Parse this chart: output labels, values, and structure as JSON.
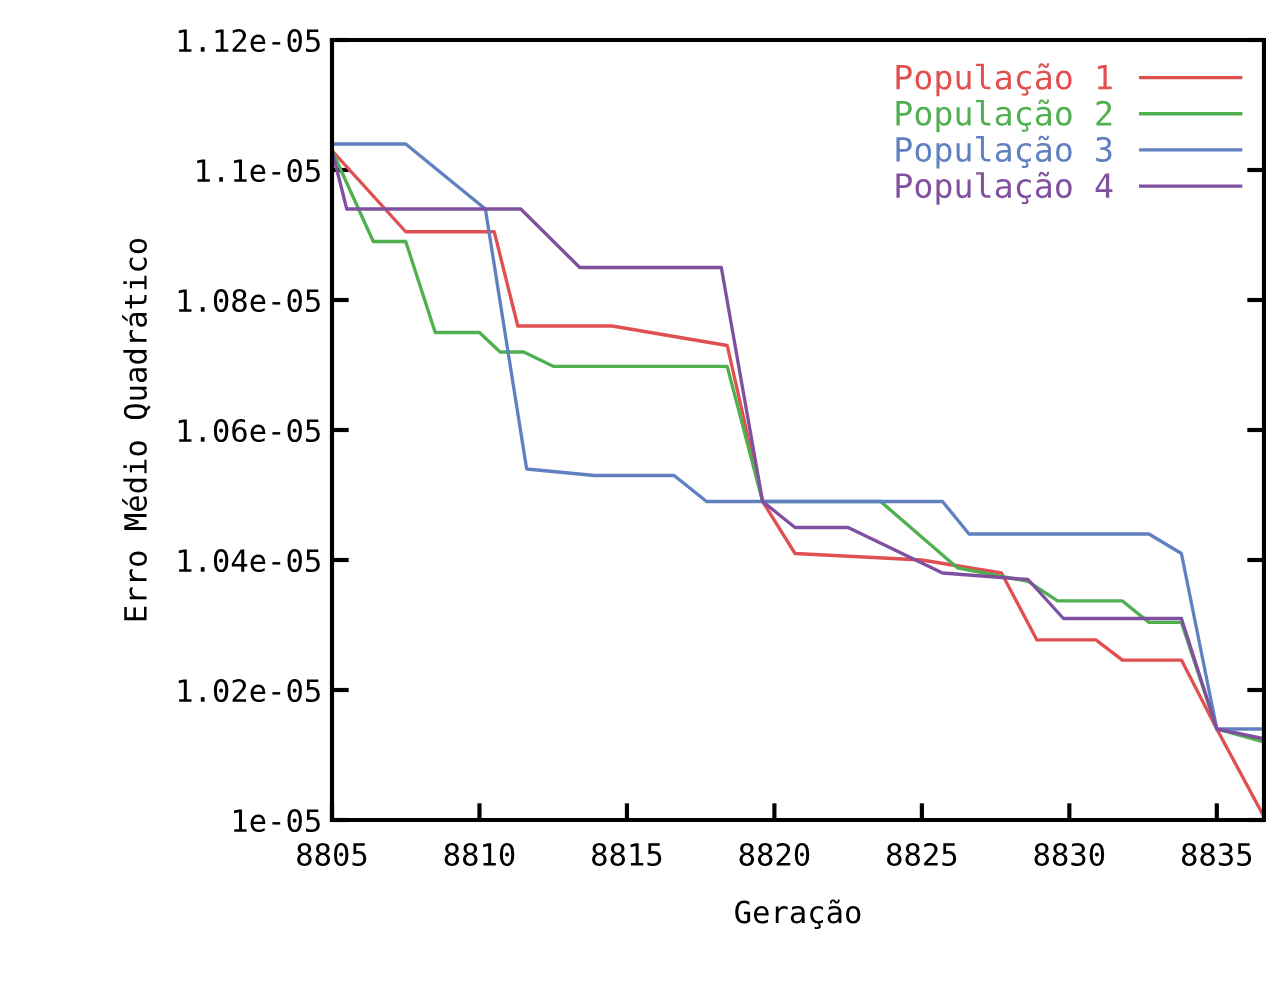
{
  "chart_data": {
    "type": "line",
    "xlabel": "Geração",
    "ylabel": "Erro Médio Quadrático",
    "xlim": [
      8805,
      8836.6
    ],
    "ylim": [
      1e-05,
      1.12e-05
    ],
    "xticks": [
      8805,
      8810,
      8815,
      8820,
      8825,
      8830,
      8835
    ],
    "yticks": [
      {
        "value": 1e-05,
        "label": "1e-05"
      },
      {
        "value": 1.02e-05,
        "label": "1.02e-05"
      },
      {
        "value": 1.04e-05,
        "label": "1.04e-05"
      },
      {
        "value": 1.06e-05,
        "label": "1.06e-05"
      },
      {
        "value": 1.08e-05,
        "label": "1.08e-05"
      },
      {
        "value": 1.1e-05,
        "label": "1.1e-05"
      },
      {
        "value": 1.12e-05,
        "label": "1.12e-05"
      }
    ],
    "grid": false,
    "legend": "top right",
    "marker": "none",
    "line_style": "solid",
    "series": [
      {
        "name": "População 1",
        "color": "#e05050",
        "x": [
          8805,
          8807.5,
          8810.5,
          8811.3,
          8814.5,
          8818.4,
          8819.6,
          8820.7,
          8825,
          8827.7,
          8828.9,
          8830.9,
          8831.8,
          8833.8,
          8835,
          8836.6
        ],
        "values": [
          1.103e-05,
          1.0905e-05,
          1.0905e-05,
          1.076e-05,
          1.076e-05,
          1.073e-05,
          1.049e-05,
          1.041e-05,
          1.04e-05,
          1.038e-05,
          1.0277e-05,
          1.0277e-05,
          1.0246e-05,
          1.0246e-05,
          1.014e-05,
          1.0005e-05
        ]
      },
      {
        "name": "População 2",
        "color": "#50b050",
        "x": [
          8805,
          8806.4,
          8807.5,
          8808.5,
          8810,
          8810.7,
          8811.5,
          8812.5,
          8818.4,
          8819.6,
          8823.6,
          8826.2,
          8828.6,
          8829.6,
          8831.8,
          8832.7,
          8833.8,
          8835,
          8836.6
        ],
        "values": [
          1.103e-05,
          1.089e-05,
          1.089e-05,
          1.075e-05,
          1.075e-05,
          1.072e-05,
          1.072e-05,
          1.0698e-05,
          1.0698e-05,
          1.049e-05,
          1.049e-05,
          1.0388e-05,
          1.0367e-05,
          1.0337e-05,
          1.0337e-05,
          1.0304e-05,
          1.0304e-05,
          1.014e-05,
          1.012e-05
        ]
      },
      {
        "name": "População 3",
        "color": "#6080c0",
        "x": [
          8805,
          8807.5,
          8810.2,
          8811.6,
          8813.9,
          8816.6,
          8817.7,
          8825.7,
          8826.6,
          8832.7,
          8833.8,
          8835,
          8836.6
        ],
        "values": [
          1.104e-05,
          1.104e-05,
          1.094e-05,
          1.054e-05,
          1.053e-05,
          1.053e-05,
          1.049e-05,
          1.049e-05,
          1.044e-05,
          1.044e-05,
          1.041e-05,
          1.014e-05,
          1.014e-05
        ]
      },
      {
        "name": "População 4",
        "color": "#8050a0",
        "x": [
          8805,
          8805.5,
          8811.4,
          8813.4,
          8818.2,
          8819.6,
          8820.7,
          8822.5,
          8825.7,
          8828.6,
          8829.8,
          8833.8,
          8835,
          8836.6
        ],
        "values": [
          1.103e-05,
          1.094e-05,
          1.094e-05,
          1.085e-05,
          1.085e-05,
          1.049e-05,
          1.045e-05,
          1.045e-05,
          1.038e-05,
          1.037e-05,
          1.031e-05,
          1.031e-05,
          1.014e-05,
          1.0125e-05
        ]
      }
    ]
  }
}
